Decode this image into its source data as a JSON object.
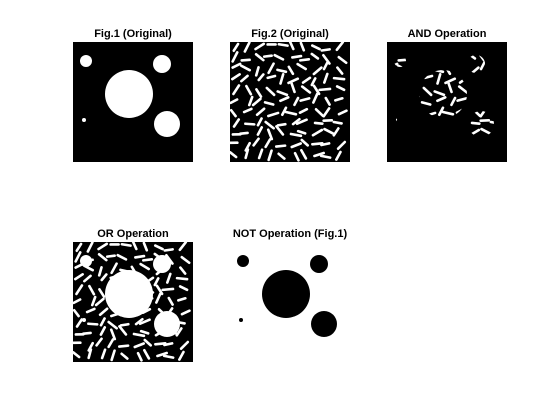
{
  "figure": {
    "background": "#ffffff",
    "panels": [
      {
        "title": "Fig.1 (Original)",
        "image": "binary-circles",
        "background": "#000000",
        "foreground": "#ffffff"
      },
      {
        "title": "Fig.2 (Original)",
        "image": "binary-rice-grains",
        "background": "#000000",
        "foreground": "#ffffff"
      },
      {
        "title": "AND Operation",
        "image": "binary-and-result",
        "background": "#000000",
        "foreground": "#ffffff"
      },
      {
        "title": "OR Operation",
        "image": "binary-or-result",
        "background": "#000000",
        "foreground": "#ffffff"
      },
      {
        "title": "NOT Operation (Fig.1)",
        "image": "binary-not-circles",
        "background": "#ffffff",
        "foreground": "#000000"
      }
    ]
  }
}
